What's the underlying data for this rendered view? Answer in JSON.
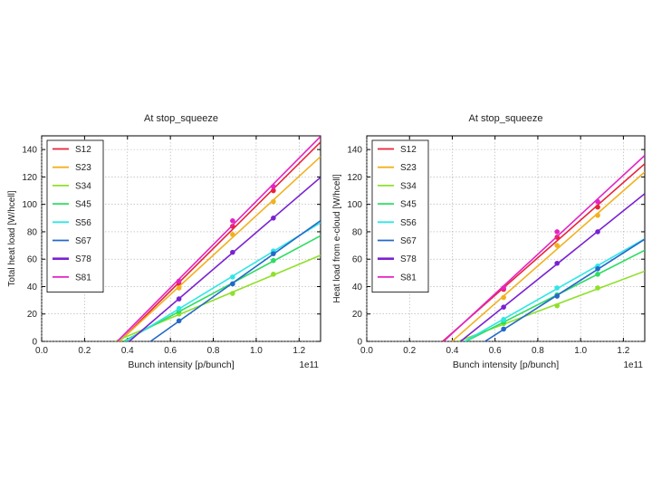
{
  "series_colors": {
    "S12": "#e8223a",
    "S23": "#f2b11f",
    "S34": "#8fe02a",
    "S45": "#2fdc63",
    "S56": "#2fe6e6",
    "S67": "#2468c9",
    "S78": "#7a22d1",
    "S81": "#e424c4"
  },
  "chart_data": [
    {
      "type": "scatter",
      "title": "At stop_squeeze",
      "xlabel": "Bunch intensity [p/bunch]",
      "ylabel": "Total heat load [W/hcell]",
      "x_multiplier_label": "1e11",
      "xlim": [
        0.0,
        1.3
      ],
      "ylim": [
        0,
        150
      ],
      "xticks": [
        "0.0",
        "0.2",
        "0.4",
        "0.6",
        "0.8",
        "1.0",
        "1.2"
      ],
      "yticks": [
        "0",
        "20",
        "40",
        "60",
        "80",
        "100",
        "120",
        "140"
      ],
      "grid": true,
      "legend": "top-left",
      "fit_lines": true,
      "x": [
        0.64,
        0.89,
        1.08
      ],
      "series": [
        {
          "name": "S12",
          "values": [
            42,
            84,
            110
          ]
        },
        {
          "name": "S23",
          "values": [
            39,
            78,
            102
          ]
        },
        {
          "name": "S34",
          "values": [
            20,
            35,
            49
          ]
        },
        {
          "name": "S45",
          "values": [
            22,
            42,
            59
          ]
        },
        {
          "name": "S56",
          "values": [
            24,
            47,
            66
          ]
        },
        {
          "name": "S67",
          "values": [
            15,
            42,
            64
          ]
        },
        {
          "name": "S78",
          "values": [
            31,
            65,
            90
          ]
        },
        {
          "name": "S81",
          "values": [
            44,
            88,
            113
          ]
        }
      ]
    },
    {
      "type": "scatter",
      "title": "At stop_squeeze",
      "xlabel": "Bunch intensity [p/bunch]",
      "ylabel": "Heat load from e-cloud [W/hcell]",
      "x_multiplier_label": "1e11",
      "xlim": [
        0.0,
        1.3
      ],
      "ylim": [
        0,
        150
      ],
      "xticks": [
        "0.0",
        "0.2",
        "0.4",
        "0.6",
        "0.8",
        "1.0",
        "1.2"
      ],
      "yticks": [
        "0",
        "20",
        "40",
        "60",
        "80",
        "100",
        "120",
        "140"
      ],
      "grid": true,
      "legend": "top-left",
      "fit_lines": true,
      "x": [
        0.64,
        0.89,
        1.08
      ],
      "series": [
        {
          "name": "S12",
          "values": [
            38,
            76,
            98
          ]
        },
        {
          "name": "S23",
          "values": [
            32,
            70,
            92
          ]
        },
        {
          "name": "S34",
          "values": [
            13,
            26,
            39
          ]
        },
        {
          "name": "S45",
          "values": [
            14,
            34,
            49
          ]
        },
        {
          "name": "S56",
          "values": [
            16,
            39,
            55
          ]
        },
        {
          "name": "S67",
          "values": [
            9,
            33,
            53
          ]
        },
        {
          "name": "S78",
          "values": [
            25,
            57,
            80
          ]
        },
        {
          "name": "S81",
          "values": [
            39,
            80,
            102
          ]
        }
      ]
    }
  ]
}
